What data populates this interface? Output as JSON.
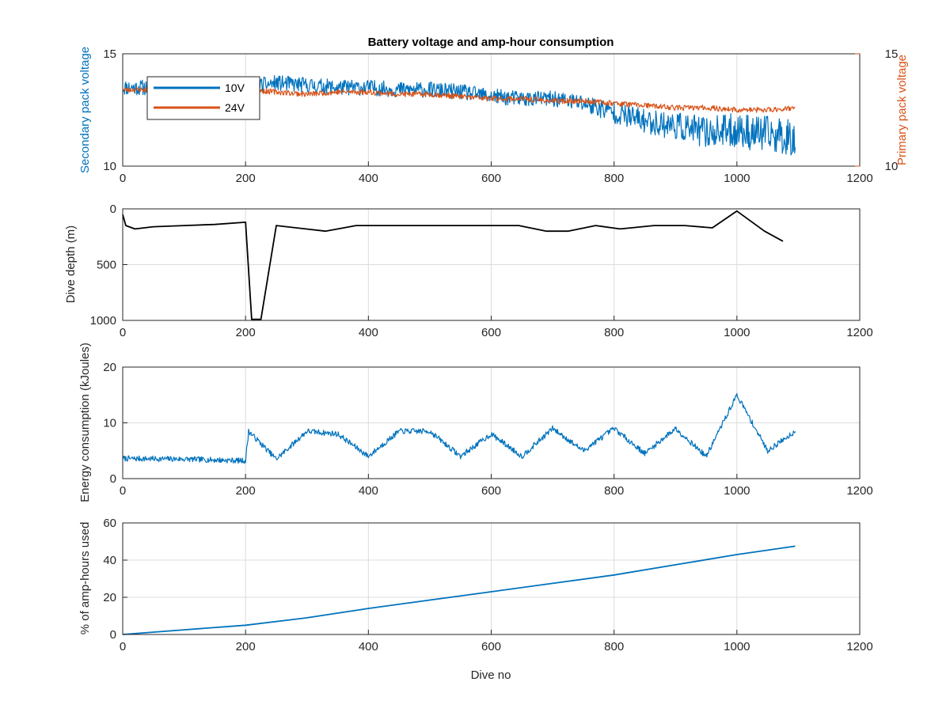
{
  "title": "Battery voltage and amp-hour consumption",
  "colors": {
    "series_10v": "#0072BD",
    "series_24v": "#D95319",
    "depth": "#000000",
    "grid": "#dcdcdc",
    "axis": "#262626"
  },
  "chart_data": [
    {
      "id": "voltage",
      "type": "line",
      "title": "Battery voltage and amp-hour consumption",
      "xlabel": "",
      "ylabel_left": "Secondary pack voltage",
      "ylabel_right": "Primary pack voltage",
      "xlim": [
        0,
        1200
      ],
      "ylim": [
        10,
        15
      ],
      "ylim_right": [
        10,
        15
      ],
      "x_ticks": [
        "0",
        "200",
        "400",
        "600",
        "800",
        "1000",
        "1200"
      ],
      "y_ticks": [
        "10",
        "15"
      ],
      "y_ticks_right": [
        "10",
        "15"
      ],
      "grid": true,
      "legend": "top-left",
      "series": [
        {
          "name": "10V",
          "x": [
            0,
            50,
            100,
            150,
            200,
            250,
            300,
            350,
            400,
            450,
            500,
            550,
            600,
            650,
            700,
            750,
            800,
            850,
            900,
            950,
            1000,
            1050,
            1095
          ],
          "values": [
            13.5,
            13.5,
            13.5,
            13.5,
            13.5,
            13.7,
            13.6,
            13.5,
            13.5,
            13.4,
            13.4,
            13.3,
            13.1,
            13.0,
            13.0,
            12.8,
            12.4,
            12.0,
            11.8,
            11.5,
            11.6,
            11.4,
            11.3
          ]
        },
        {
          "name": "24V",
          "x": [
            0,
            50,
            100,
            150,
            200,
            250,
            300,
            350,
            400,
            450,
            500,
            550,
            600,
            650,
            700,
            750,
            800,
            850,
            900,
            950,
            1000,
            1050,
            1095
          ],
          "values": [
            13.4,
            13.4,
            13.4,
            13.4,
            13.4,
            13.3,
            13.2,
            13.3,
            13.3,
            13.2,
            13.2,
            13.1,
            13.0,
            13.0,
            12.9,
            12.9,
            12.8,
            12.7,
            12.6,
            12.6,
            12.5,
            12.5,
            12.6
          ]
        }
      ]
    },
    {
      "id": "depth",
      "type": "line",
      "xlabel": "",
      "ylabel": "Dive depth (m)",
      "xlim": [
        0,
        1200
      ],
      "ylim": [
        1000,
        0
      ],
      "reversed_y": true,
      "x_ticks": [
        "0",
        "200",
        "400",
        "600",
        "800",
        "1000",
        "1200"
      ],
      "y_ticks": [
        "0",
        "500",
        "1000"
      ],
      "grid": true,
      "series": [
        {
          "x": [
            0,
            5,
            20,
            50,
            100,
            150,
            200,
            210,
            225,
            250,
            330,
            380,
            435,
            475,
            515,
            550,
            605,
            645,
            690,
            725,
            770,
            810,
            865,
            915,
            960,
            1000,
            1045,
            1075
          ],
          "values": [
            50,
            150,
            180,
            160,
            150,
            140,
            120,
            990,
            990,
            150,
            200,
            150,
            150,
            150,
            150,
            150,
            150,
            150,
            200,
            200,
            150,
            180,
            150,
            150,
            170,
            20,
            200,
            290
          ]
        }
      ]
    },
    {
      "id": "energy",
      "type": "line",
      "xlabel": "",
      "ylabel": "Energy consumption (kJoules)",
      "xlim": [
        0,
        1200
      ],
      "ylim": [
        0,
        20
      ],
      "x_ticks": [
        "0",
        "200",
        "400",
        "600",
        "800",
        "1000",
        "1200"
      ],
      "y_ticks": [
        "0",
        "10",
        "20"
      ],
      "grid": true,
      "series": [
        {
          "x": [
            0,
            100,
            200,
            205,
            250,
            300,
            350,
            400,
            450,
            500,
            550,
            600,
            650,
            700,
            750,
            800,
            850,
            900,
            950,
            1000,
            1050,
            1095
          ],
          "values": [
            3.6,
            3.5,
            3.2,
            8.5,
            3.5,
            8.5,
            8.0,
            4.0,
            8.5,
            8.5,
            4.0,
            8.0,
            4.0,
            9.0,
            5.0,
            9.0,
            4.5,
            9.0,
            4.0,
            15.0,
            5.0,
            8.5
          ]
        }
      ]
    },
    {
      "id": "amp_hours",
      "type": "line",
      "xlabel": "Dive no",
      "ylabel": "% of amp-hours used",
      "xlim": [
        0,
        1200
      ],
      "ylim": [
        0,
        60
      ],
      "x_ticks": [
        "0",
        "200",
        "400",
        "600",
        "800",
        "1000",
        "1200"
      ],
      "y_ticks": [
        "0",
        "20",
        "40",
        "60"
      ],
      "grid": true,
      "series": [
        {
          "x": [
            0,
            100,
            200,
            300,
            400,
            500,
            600,
            700,
            800,
            900,
            1000,
            1095
          ],
          "values": [
            0,
            2.5,
            5,
            9,
            14,
            18.5,
            23,
            27.5,
            32,
            37.5,
            43,
            47.5
          ]
        }
      ]
    }
  ]
}
